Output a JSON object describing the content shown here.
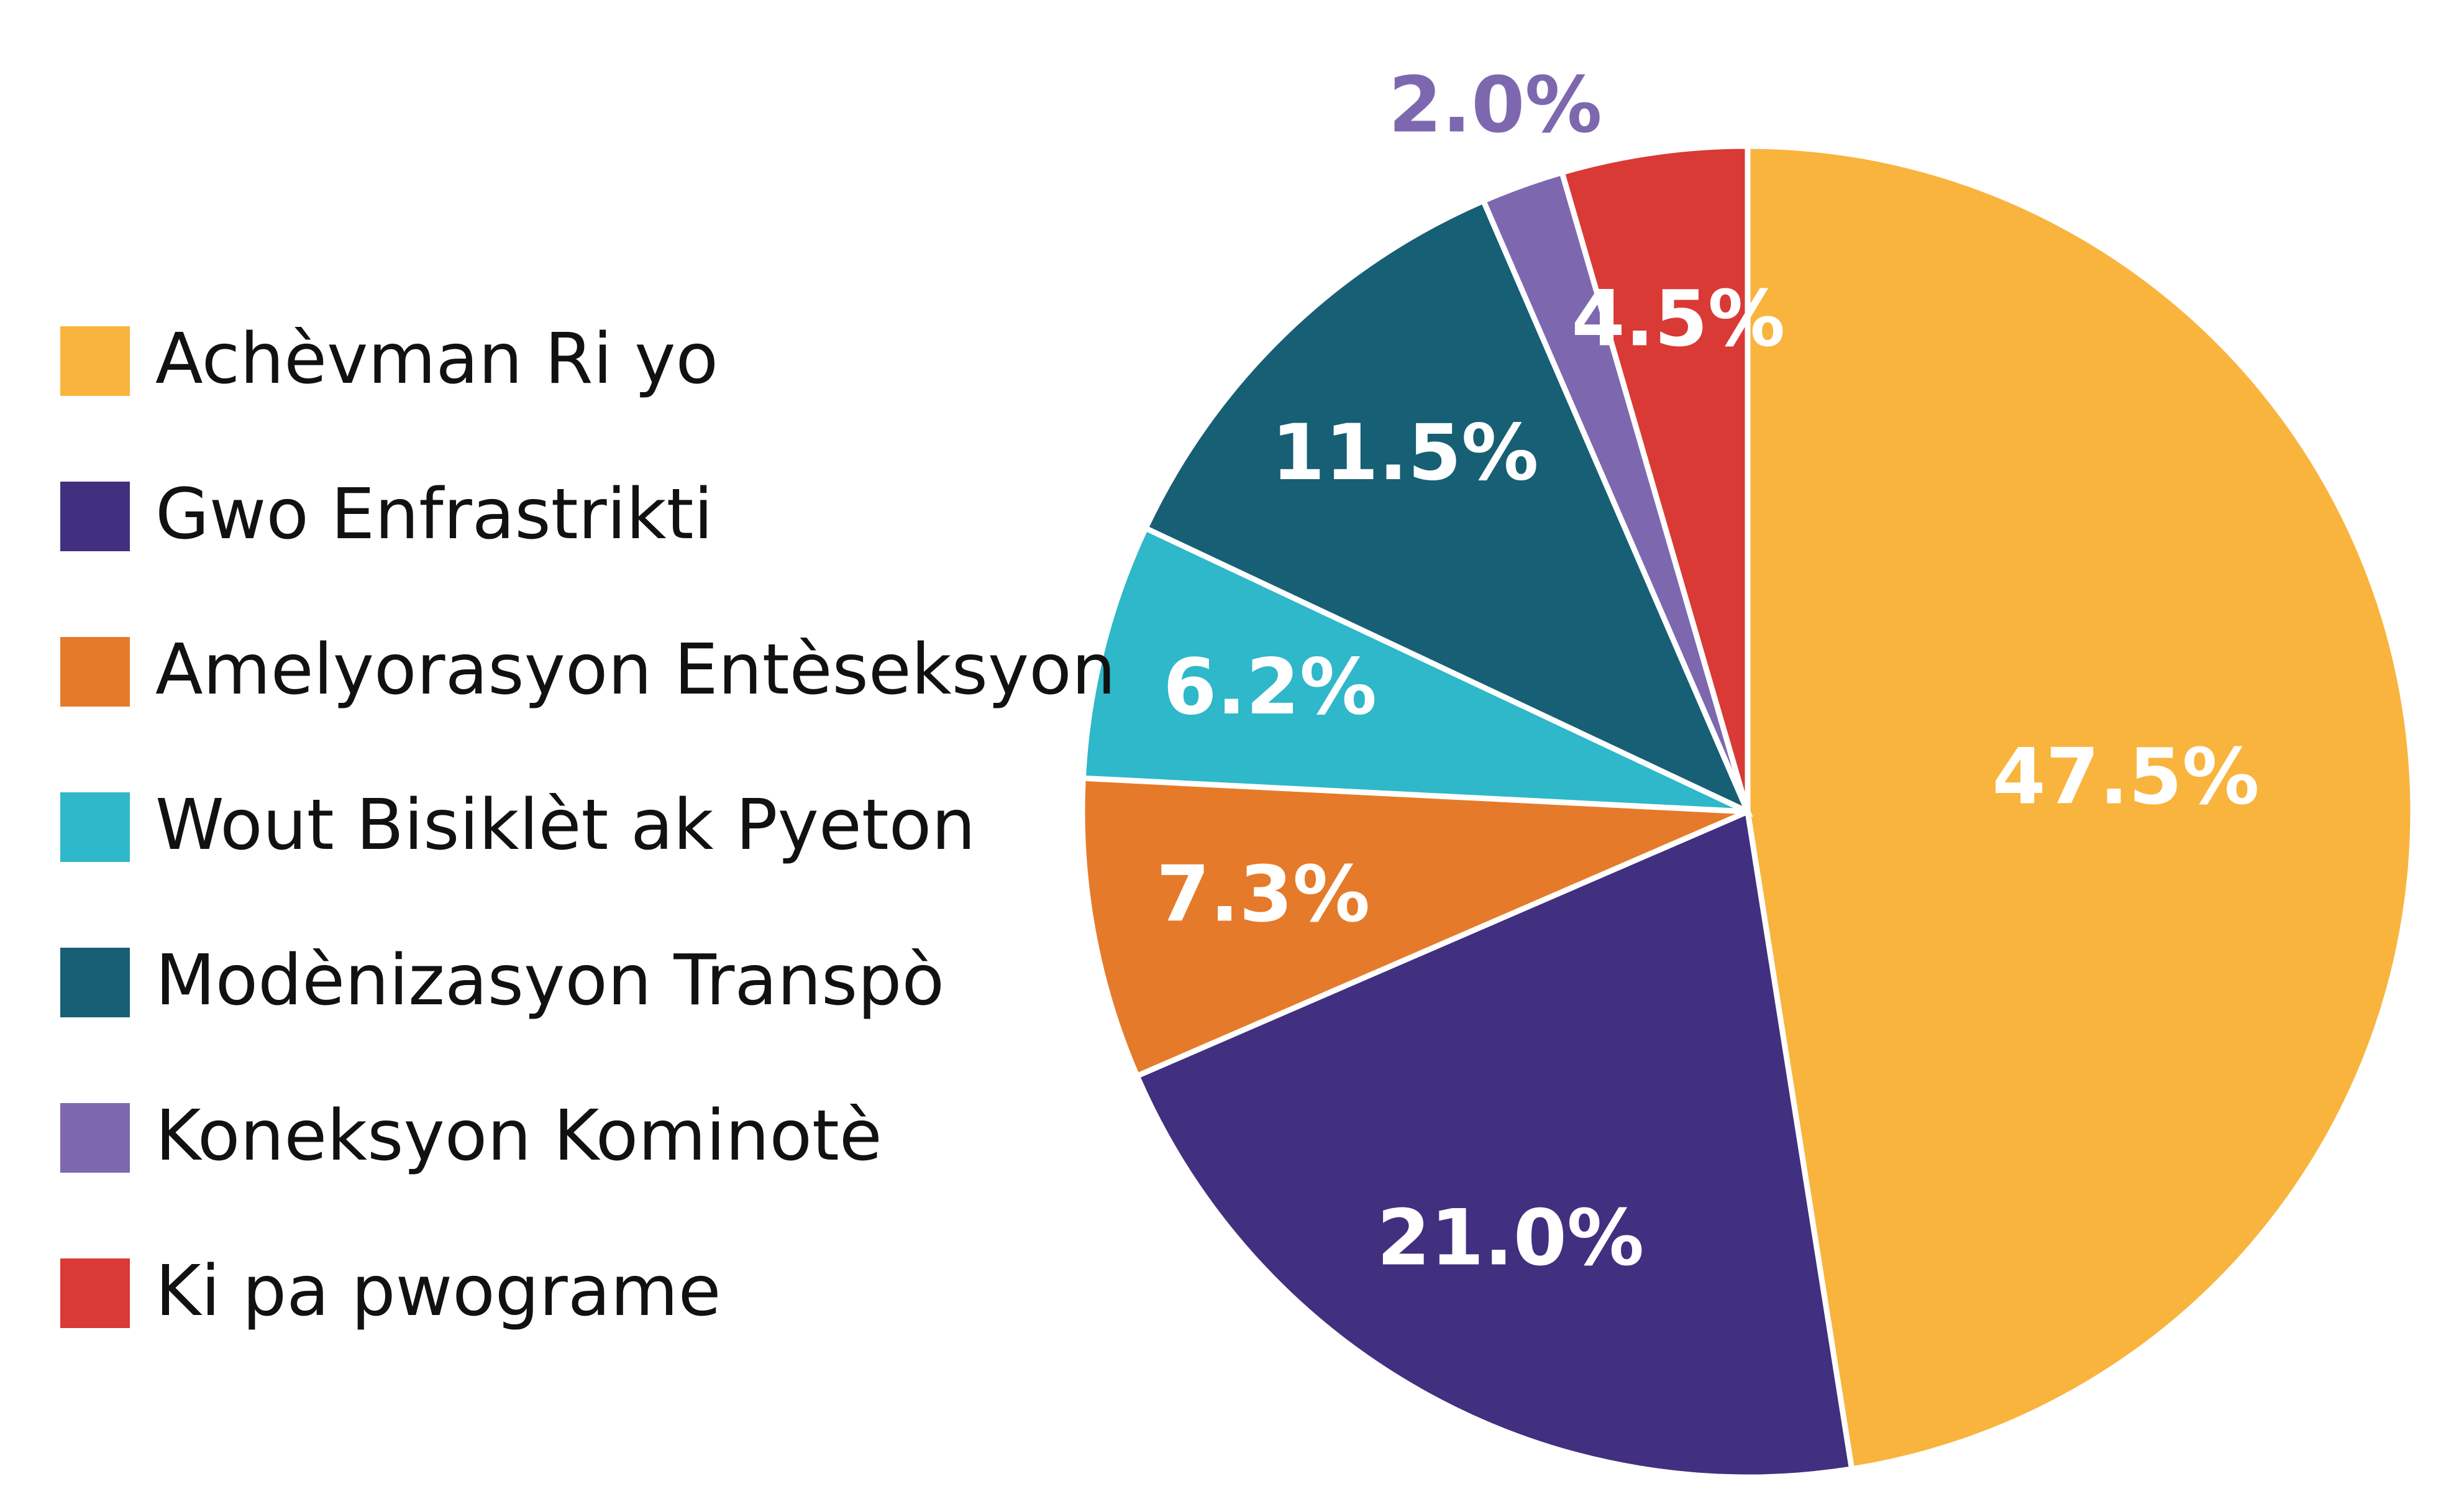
{
  "chart_data": {
    "type": "pie",
    "categories": [
      "Achèvman Ri yo",
      "Gwo Enfrastrikti",
      "Amelyorasyon Entèseksyon",
      "Wout Bisiklèt ak Pyeton",
      "Modènizasyon Transpò",
      "Koneksyon Kominotè",
      "Ki pa pwograme"
    ],
    "values": [
      47.5,
      21.0,
      7.3,
      6.2,
      11.5,
      2.0,
      4.5
    ],
    "value_labels": [
      "47.5%",
      "21.0%",
      "7.3%",
      "6.2%",
      "11.5%",
      "2.0%",
      "4.5%"
    ],
    "colors": [
      "#f9b43e",
      "#412f7f",
      "#e57b2a",
      "#2eb8c9",
      "#175f74",
      "#7d68b0",
      "#d93a35"
    ],
    "legend": "left"
  }
}
